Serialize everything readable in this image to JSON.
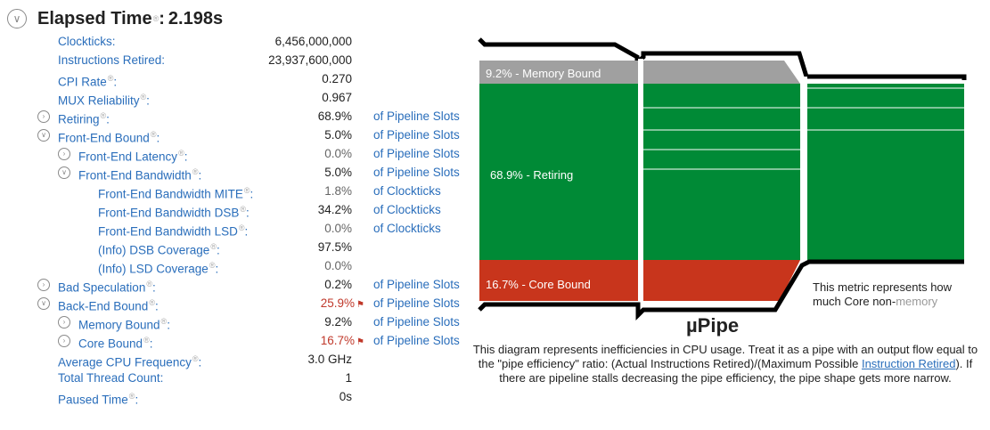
{
  "header": {
    "title": "Elapsed Time",
    "separator": ":",
    "value": "2.198s",
    "help_mark": "®"
  },
  "metrics": [
    {
      "label": "Clockticks:",
      "value": "6,456,000,000",
      "unit": "",
      "indent": 0,
      "toggle": "none"
    },
    {
      "label": "Instructions Retired:",
      "value": "23,937,600,000",
      "unit": "",
      "indent": 0,
      "toggle": "none"
    },
    {
      "label": "CPI Rate",
      "help": "®",
      "suffix": ":",
      "value": "0.270",
      "unit": "",
      "indent": 0,
      "toggle": "none"
    },
    {
      "label": "MUX Reliability",
      "help": "®",
      "suffix": ":",
      "value": "0.967",
      "unit": "",
      "indent": 0,
      "toggle": "none"
    },
    {
      "label": "Retiring",
      "help": "®",
      "suffix": ":",
      "value": "68.9%",
      "unit": "of Pipeline Slots",
      "indent": 0,
      "toggle": "right"
    },
    {
      "label": "Front-End Bound",
      "help": "®",
      "suffix": ":",
      "value": "5.0%",
      "unit": "of Pipeline Slots",
      "indent": 0,
      "toggle": "down"
    },
    {
      "label": "Front-End Latency",
      "help": "®",
      "suffix": ":",
      "value": "0.0%",
      "unit": "of Pipeline Slots",
      "indent": 1,
      "toggle": "right",
      "dim": true
    },
    {
      "label": "Front-End Bandwidth",
      "help": "®",
      "suffix": ":",
      "value": "5.0%",
      "unit": "of Pipeline Slots",
      "indent": 1,
      "toggle": "down"
    },
    {
      "label": "Front-End Bandwidth MITE",
      "help": "®",
      "suffix": ":",
      "value": "1.8%",
      "unit": "of Clockticks",
      "indent": 2,
      "toggle": "none",
      "dim": true
    },
    {
      "label": "Front-End Bandwidth DSB",
      "help": "®",
      "suffix": ":",
      "value": "34.2%",
      "unit": "of Clockticks",
      "indent": 2,
      "toggle": "none"
    },
    {
      "label": "Front-End Bandwidth LSD",
      "help": "®",
      "suffix": ":",
      "value": "0.0%",
      "unit": "of Clockticks",
      "indent": 2,
      "toggle": "none",
      "dim": true
    },
    {
      "label": "(Info) DSB Coverage",
      "help": "®",
      "suffix": ":",
      "value": "97.5%",
      "unit": "",
      "indent": 2,
      "toggle": "none"
    },
    {
      "label": "(Info) LSD Coverage",
      "help": "®",
      "suffix": ":",
      "value": "0.0%",
      "unit": "",
      "indent": 2,
      "toggle": "none",
      "dim": true
    },
    {
      "label": "Bad Speculation",
      "help": "®",
      "suffix": ":",
      "value": "0.2%",
      "unit": "of Pipeline Slots",
      "indent": 0,
      "toggle": "right"
    },
    {
      "label": "Back-End Bound",
      "help": "®",
      "suffix": ":",
      "value": "25.9%",
      "unit": "of Pipeline Slots",
      "indent": 0,
      "toggle": "down",
      "flagged": true
    },
    {
      "label": "Memory Bound",
      "help": "®",
      "suffix": ":",
      "value": "9.2%",
      "unit": "of Pipeline Slots",
      "indent": 1,
      "toggle": "right"
    },
    {
      "label": "Core Bound",
      "help": "®",
      "suffix": ":",
      "value": "16.7%",
      "unit": "of Pipeline Slots",
      "indent": 1,
      "toggle": "right",
      "flagged": true
    },
    {
      "label": "Average CPU Frequency",
      "help": "®",
      "suffix": ":",
      "value": "3.0 GHz",
      "unit": "",
      "indent": 0,
      "toggle": "none"
    },
    {
      "label": "Total Thread Count:",
      "value": "1",
      "unit": "",
      "indent": 0,
      "toggle": "none"
    },
    {
      "label": "Paused Time",
      "help": "®",
      "suffix": ":",
      "value": "0s",
      "unit": "",
      "indent": 0,
      "toggle": "none"
    }
  ],
  "pipe": {
    "segments": {
      "memory": "9.2% - Memory Bound",
      "retiring": "68.9% - Retiring",
      "core": "16.7% - Core Bound"
    },
    "colors": {
      "memory": "#a0a0a0",
      "retiring": "#008a36",
      "core": "#c8351c",
      "outline": "#000000"
    }
  },
  "upipe_title": "µPipe",
  "tooltip": {
    "text": "This metric represents how much Core non-",
    "faded": "memory"
  },
  "description": {
    "before": "This diagram represents inefficiencies in CPU usage. Treat it as a pipe with an output flow equal to the \"pipe efficiency\" ratio: (Actual Instructions Retired)/(Maximum Possible ",
    "link": "Instruction Retired",
    "after": "). If there are pipeline stalls decreasing the pipe efficiency, the pipe shape gets more narrow."
  }
}
